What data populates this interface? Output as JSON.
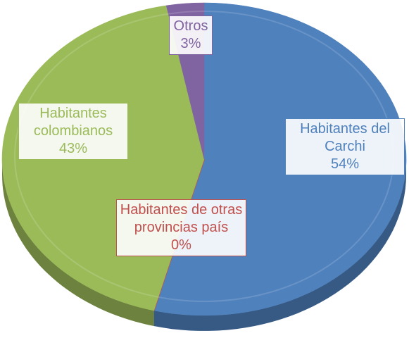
{
  "chart_data": {
    "type": "pie",
    "categories": [
      "Habitantes del Carchi",
      "Habitantes de otras provincias país",
      "Habitantes colombianos",
      "Otros"
    ],
    "values": [
      54,
      0,
      43,
      3
    ],
    "value_labels": [
      "54%",
      "0%",
      "43%",
      "3%"
    ],
    "colors": [
      "#4f81bd",
      "#c0504d",
      "#9bbb59",
      "#8064a2"
    ]
  }
}
